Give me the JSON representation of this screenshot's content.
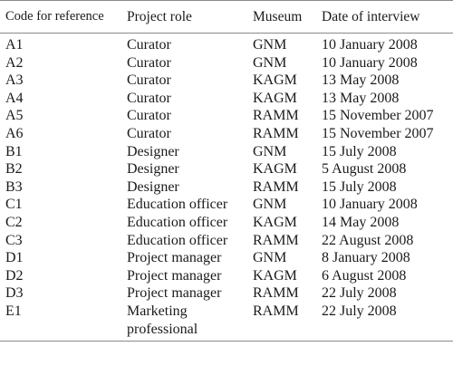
{
  "table": {
    "headers": [
      "Code for reference",
      "Project role",
      "Museum",
      "Date of interview"
    ],
    "rows": [
      {
        "code": "A1",
        "role": "Curator",
        "museum": "GNM",
        "date": "10 January 2008"
      },
      {
        "code": "A2",
        "role": "Curator",
        "museum": "GNM",
        "date": "10 January 2008"
      },
      {
        "code": "A3",
        "role": "Curator",
        "museum": "KAGM",
        "date": "13 May 2008"
      },
      {
        "code": "A4",
        "role": "Curator",
        "museum": "KAGM",
        "date": "13 May 2008"
      },
      {
        "code": "A5",
        "role": "Curator",
        "museum": "RAMM",
        "date": "15 November 2007"
      },
      {
        "code": "A6",
        "role": "Curator",
        "museum": "RAMM",
        "date": "15 November 2007"
      },
      {
        "code": "B1",
        "role": "Designer",
        "museum": "GNM",
        "date": "15 July 2008"
      },
      {
        "code": "B2",
        "role": "Designer",
        "museum": "KAGM",
        "date": "5 August 2008"
      },
      {
        "code": "B3",
        "role": "Designer",
        "museum": "RAMM",
        "date": "15 July 2008"
      },
      {
        "code": "C1",
        "role": "Education officer",
        "museum": "GNM",
        "date": "10 January 2008"
      },
      {
        "code": "C2",
        "role": "Education officer",
        "museum": "KAGM",
        "date": "14 May 2008"
      },
      {
        "code": "C3",
        "role": "Education officer",
        "museum": "RAMM",
        "date": "22 August 2008"
      },
      {
        "code": "D1",
        "role": "Project manager",
        "museum": "GNM",
        "date": "8 January 2008"
      },
      {
        "code": "D2",
        "role": "Project manager",
        "museum": "KAGM",
        "date": "6 August 2008"
      },
      {
        "code": "D3",
        "role": "Project manager",
        "museum": "RAMM",
        "date": "22 July 2008"
      },
      {
        "code": "E1",
        "role": "Marketing professional",
        "museum": "RAMM",
        "date": "22 July 2008"
      }
    ]
  }
}
